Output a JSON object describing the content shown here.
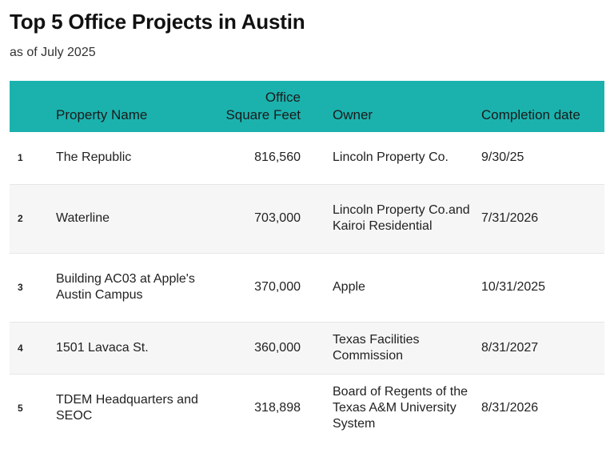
{
  "title": "Top 5 Office Projects in Austin",
  "subtitle": "as of July 2025",
  "columns": {
    "rank": "",
    "property_name": "Property Name",
    "sqft_line1": "Office",
    "sqft_line2": "Square Feet",
    "owner": "Owner",
    "completion": "Completion date"
  },
  "header_color": "#1bb2ae",
  "rows": [
    {
      "rank": "1",
      "name": "The Republic",
      "sqft": "816,560",
      "owner": "Lincoln Property Co.",
      "date": "9/30/25"
    },
    {
      "rank": "2",
      "name": "Waterline",
      "sqft": "703,000",
      "owner": "Lincoln Property Co.and Kairoi Residential",
      "date": "7/31/2026"
    },
    {
      "rank": "3",
      "name": "Building AC03 at Apple's Austin Campus",
      "sqft": "370,000",
      "owner": "Apple",
      "date": "10/31/2025"
    },
    {
      "rank": "4",
      "name": "1501 Lavaca St.",
      "sqft": "360,000",
      "owner": "Texas Facilities Commission",
      "date": "8/31/2027"
    },
    {
      "rank": "5",
      "name": "TDEM Headquarters and SEOC",
      "sqft": "318,898",
      "owner": "Board of Regents of the Texas A&M University System",
      "date": "8/31/2026"
    }
  ]
}
